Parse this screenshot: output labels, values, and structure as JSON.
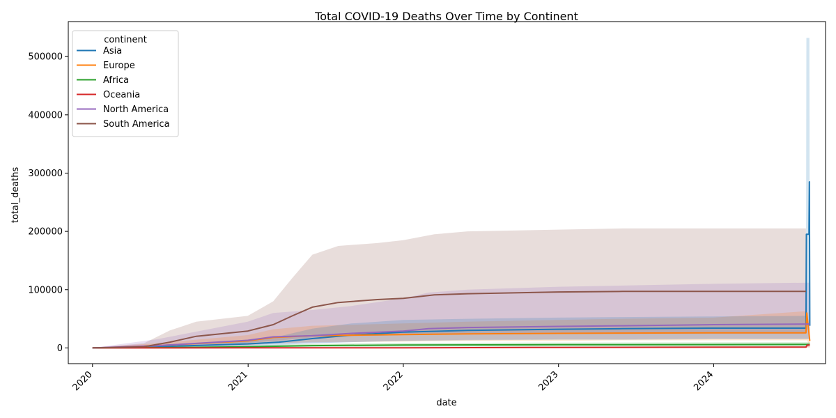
{
  "chart_data": {
    "type": "line",
    "title": "Total COVID-19 Deaths Over Time by Continent",
    "xlabel": "date",
    "ylabel": "total_deaths",
    "x_ticks": [
      "2020",
      "2021",
      "2022",
      "2023",
      "2024"
    ],
    "y_ticks": [
      0,
      100000,
      200000,
      300000,
      400000,
      500000
    ],
    "y_tick_labels": [
      "0",
      "100000",
      "200000",
      "300000",
      "400000",
      "500000"
    ],
    "ylim": [
      -27000,
      560000
    ],
    "xlim": [
      "2019-11-05",
      "2024-09-20"
    ],
    "grid": false,
    "confidence_bands": true,
    "legend": {
      "title": "continent",
      "placement": "top-left",
      "entries": [
        "Asia",
        "Europe",
        "Africa",
        "Oceania",
        "North America",
        "South America"
      ]
    },
    "series": [
      {
        "name": "Asia",
        "color": "#1f77b4",
        "x": [
          "2020-01-01",
          "2020-06-01",
          "2020-12-31",
          "2021-03-15",
          "2021-06-01",
          "2021-09-01",
          "2022-01-01",
          "2022-06-01",
          "2023-01-01",
          "2023-06-01",
          "2024-01-01",
          "2024-08-05",
          "2024-08-06",
          "2024-08-12",
          "2024-08-13",
          "2024-08-14"
        ],
        "y": [
          0,
          2000,
          7000,
          10000,
          16000,
          22000,
          27000,
          30000,
          32000,
          33000,
          34000,
          34000,
          195000,
          195000,
          285000,
          38000
        ],
        "band_low": [
          0,
          500,
          3000,
          5000,
          8000,
          10000,
          12000,
          13000,
          14000,
          14000,
          15000,
          15000,
          15000,
          15000,
          15000,
          15000
        ],
        "band_high": [
          0,
          4000,
          12000,
          20000,
          33000,
          42000,
          48000,
          50000,
          52000,
          53000,
          54000,
          55000,
          532000,
          532000,
          532000,
          60000
        ]
      },
      {
        "name": "Europe",
        "color": "#ff7f0e",
        "x": [
          "2020-01-01",
          "2020-04-01",
          "2020-06-01",
          "2020-12-31",
          "2021-03-01",
          "2021-06-01",
          "2022-01-01",
          "2022-06-01",
          "2023-01-01",
          "2023-06-01",
          "2024-01-01",
          "2024-08-05",
          "2024-08-07",
          "2024-08-14"
        ],
        "y": [
          0,
          2000,
          4000,
          12000,
          18000,
          21000,
          23000,
          24000,
          25000,
          25500,
          26000,
          26000,
          60000,
          12000
        ],
        "band_low": [
          0,
          500,
          1000,
          5000,
          8000,
          10000,
          11000,
          12000,
          12000,
          13000,
          13000,
          13000,
          13000,
          5000
        ],
        "band_high": [
          0,
          5000,
          8000,
          22000,
          32000,
          38000,
          42000,
          45000,
          48000,
          50000,
          52000,
          63000,
          65000,
          20000
        ]
      },
      {
        "name": "Africa",
        "color": "#2ca02c",
        "x": [
          "2020-01-01",
          "2020-06-01",
          "2020-12-31",
          "2021-06-01",
          "2022-01-01",
          "2023-01-01",
          "2024-01-01",
          "2024-08-14"
        ],
        "y": [
          0,
          500,
          2000,
          4000,
          5000,
          5500,
          5800,
          6000
        ],
        "band_low": [
          0,
          200,
          800,
          1500,
          2000,
          2200,
          2300,
          2400
        ],
        "band_high": [
          0,
          1000,
          4000,
          7000,
          8500,
          9200,
          9600,
          9800
        ]
      },
      {
        "name": "Oceania",
        "color": "#d62728",
        "x": [
          "2020-01-01",
          "2021-01-01",
          "2022-01-01",
          "2023-01-01",
          "2024-01-01",
          "2024-08-05",
          "2024-08-08",
          "2024-08-14"
        ],
        "y": [
          0,
          100,
          200,
          800,
          1200,
          1300,
          5000,
          5000
        ],
        "band_low": [
          0,
          0,
          100,
          400,
          600,
          600,
          600,
          600
        ],
        "band_high": [
          0,
          300,
          500,
          1500,
          2000,
          2200,
          8000,
          8000
        ]
      },
      {
        "name": "North America",
        "color": "#9467bd",
        "x": [
          "2020-01-01",
          "2020-06-01",
          "2020-12-31",
          "2021-03-01",
          "2021-06-01",
          "2021-09-01",
          "2022-01-01",
          "2022-03-01",
          "2022-06-01",
          "2023-01-01",
          "2023-06-01",
          "2024-01-01",
          "2024-08-14"
        ],
        "y": [
          0,
          4000,
          13000,
          19000,
          21000,
          25000,
          29000,
          33000,
          35000,
          37000,
          38000,
          40000,
          41000
        ],
        "band_low": [
          0,
          1000,
          4000,
          7000,
          8000,
          10000,
          12000,
          13000,
          14000,
          15000,
          15000,
          16000,
          16000
        ],
        "band_high": [
          0,
          15000,
          45000,
          60000,
          65000,
          72000,
          85000,
          95000,
          100000,
          105000,
          107000,
          110000,
          112000
        ]
      },
      {
        "name": "South America",
        "color": "#8c564b",
        "x": [
          "2020-01-01",
          "2020-05-01",
          "2020-07-01",
          "2020-09-01",
          "2020-12-31",
          "2021-03-01",
          "2021-04-15",
          "2021-06-01",
          "2021-08-01",
          "2021-11-01",
          "2022-01-01",
          "2022-03-15",
          "2022-06-01",
          "2023-01-01",
          "2023-06-01",
          "2024-01-01",
          "2024-08-05"
        ],
        "y": [
          0,
          2000,
          10000,
          20000,
          29000,
          40000,
          55000,
          70000,
          78000,
          83000,
          85000,
          91000,
          93000,
          96000,
          97000,
          97000,
          97000
        ],
        "band_low": [
          0,
          500,
          3000,
          6000,
          9000,
          12000,
          15000,
          18000,
          20000,
          21000,
          22000,
          23000,
          24000,
          24000,
          24000,
          24000,
          24000
        ],
        "band_high": [
          0,
          8000,
          30000,
          45000,
          55000,
          80000,
          120000,
          160000,
          175000,
          180000,
          185000,
          195000,
          200000,
          203000,
          205000,
          205000,
          205000
        ]
      }
    ]
  }
}
